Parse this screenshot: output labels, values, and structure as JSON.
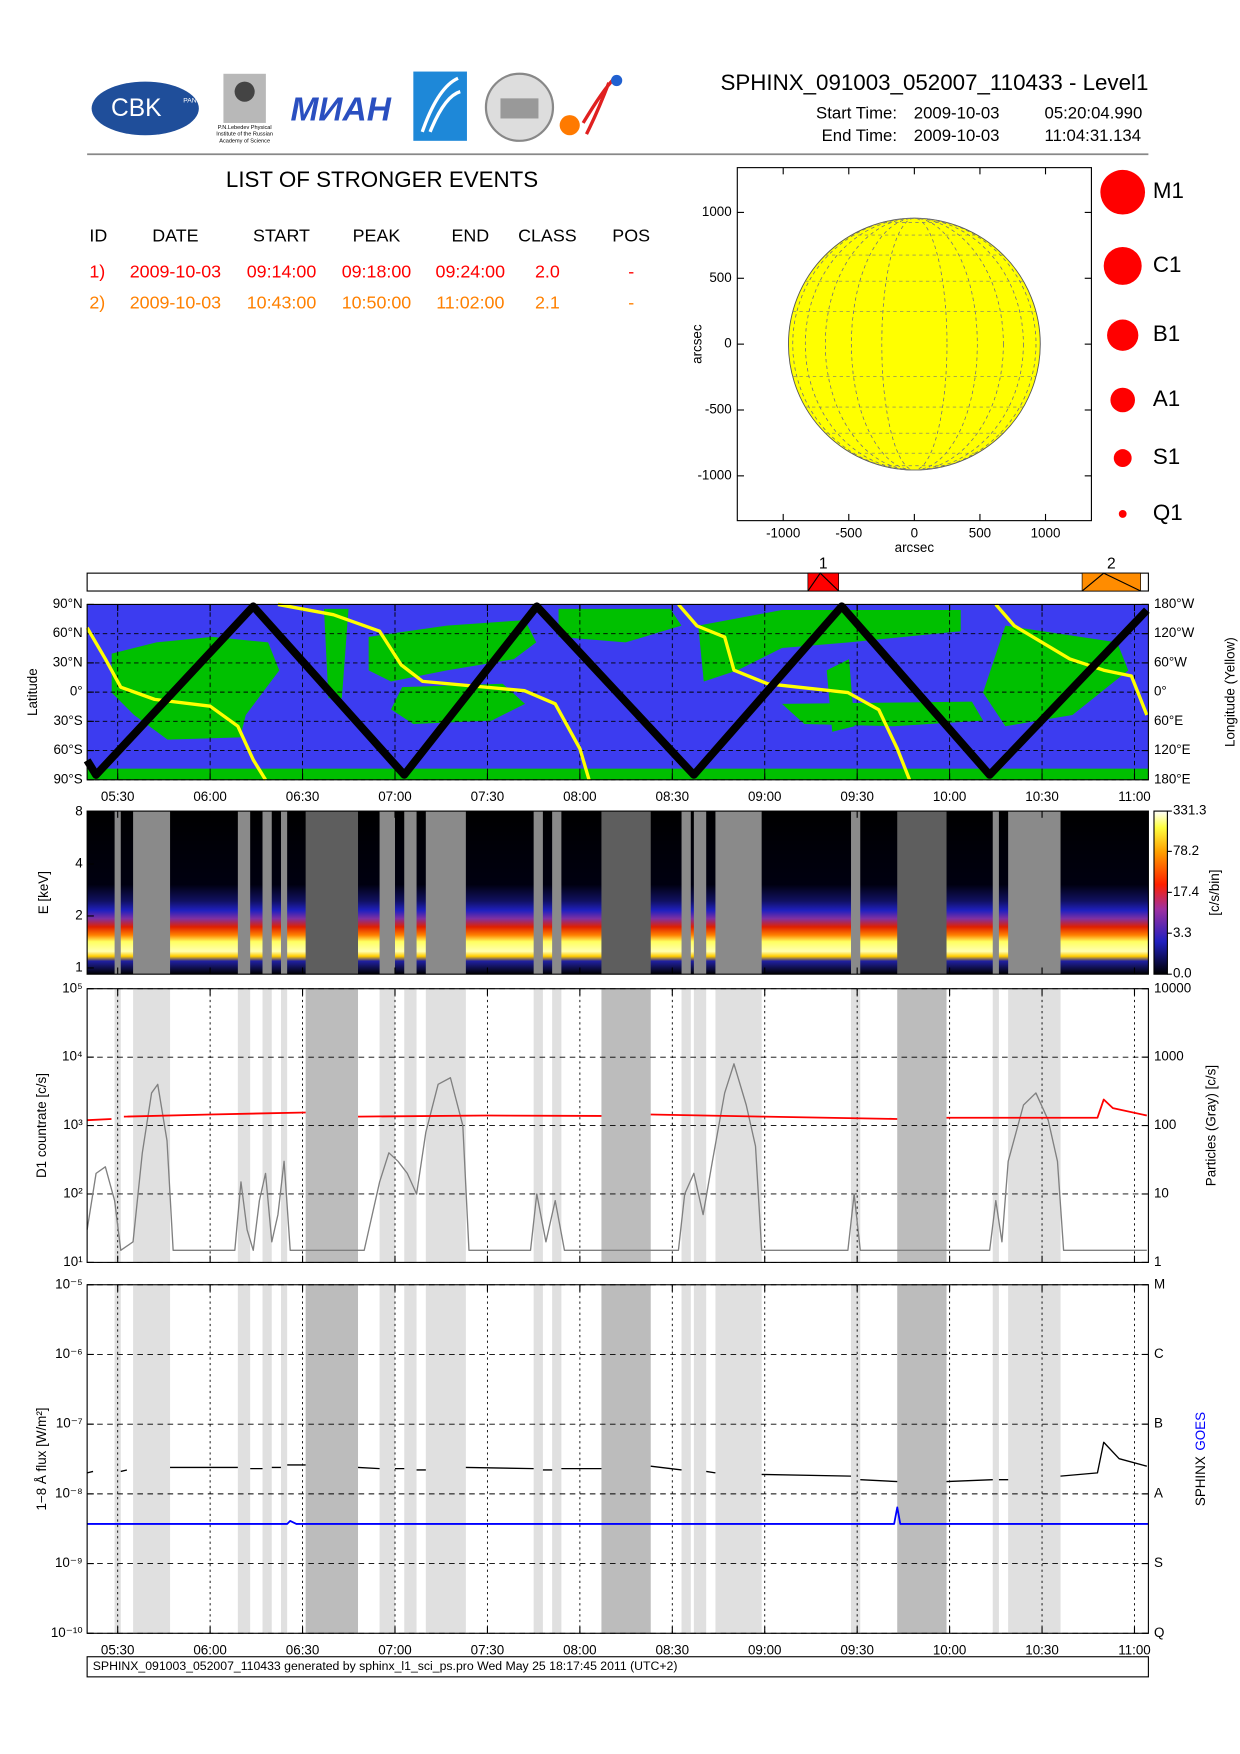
{
  "header": {
    "title": "SPHINX_091003_052007_110433 - Level1",
    "start_label": "Start Time:",
    "start_date": "2009-10-03",
    "start_time": "05:20:04.990",
    "end_label": "End Time:",
    "end_date": "2009-10-03",
    "end_time": "11:04:31.134"
  },
  "logos": {
    "cbk": "CBK",
    "pan": "PAN",
    "lebedev": [
      "P.N.Lebedev Physical",
      "Institute of the Russian",
      "Academy of Science"
    ],
    "mian": "МИАН"
  },
  "events": {
    "title": "LIST OF STRONGER EVENTS",
    "columns": [
      "ID",
      "DATE",
      "START",
      "PEAK",
      "END",
      "CLASS",
      "POS"
    ],
    "rows": [
      [
        "1)",
        "2009-10-03",
        "09:14:00",
        "09:18:00",
        "09:24:00",
        "2.0",
        "-"
      ],
      [
        "2)",
        "2009-10-03",
        "10:43:00",
        "10:50:00",
        "11:02:00",
        "2.1",
        "-"
      ]
    ],
    "row_colors": [
      "#ff0000",
      "#ff8000"
    ]
  },
  "timeline": {
    "xlim": [
      "05:20:05",
      "11:04:31"
    ],
    "xticks": [
      "05:30",
      "06:00",
      "06:30",
      "07:00",
      "07:30",
      "08:00",
      "08:30",
      "09:00",
      "09:30",
      "10:00",
      "10:30",
      "11:00"
    ],
    "gaps": [
      {
        "start": "05:29",
        "end": "05:31",
        "shade": "light"
      },
      {
        "start": "05:35",
        "end": "05:47",
        "shade": "light"
      },
      {
        "start": "06:09",
        "end": "06:13",
        "shade": "light"
      },
      {
        "start": "06:17",
        "end": "06:20",
        "shade": "light"
      },
      {
        "start": "06:23",
        "end": "06:25",
        "shade": "light"
      },
      {
        "start": "06:31",
        "end": "06:48",
        "shade": "dark"
      },
      {
        "start": "06:55",
        "end": "07:00",
        "shade": "light"
      },
      {
        "start": "07:03",
        "end": "07:07",
        "shade": "light"
      },
      {
        "start": "07:10",
        "end": "07:23",
        "shade": "light"
      },
      {
        "start": "07:45",
        "end": "07:48",
        "shade": "light"
      },
      {
        "start": "07:51",
        "end": "07:54",
        "shade": "light"
      },
      {
        "start": "08:07",
        "end": "08:23",
        "shade": "dark"
      },
      {
        "start": "08:33",
        "end": "08:36",
        "shade": "light"
      },
      {
        "start": "08:37",
        "end": "08:41",
        "shade": "light"
      },
      {
        "start": "08:44",
        "end": "08:59",
        "shade": "light"
      },
      {
        "start": "09:28",
        "end": "09:31",
        "shade": "light"
      },
      {
        "start": "09:43",
        "end": "09:59",
        "shade": "dark"
      },
      {
        "start": "10:14",
        "end": "10:16",
        "shade": "light"
      },
      {
        "start": "10:19",
        "end": "10:36",
        "shade": "light"
      }
    ]
  },
  "footer": "SPHINX_091003_052007_110433 generated by sphinx_l1_sci_ps.pro Wed May 25 18:17:45 2011 (UTC+2)",
  "chart_data": [
    {
      "type": "disk",
      "xlabel": "arcsec",
      "ylabel": "arcsec",
      "xlim": [
        -1350,
        1350
      ],
      "ylim": [
        -1340,
        1340
      ],
      "xticks": [
        -1000,
        -500,
        0,
        500,
        1000
      ],
      "yticks": [
        -1000,
        -500,
        0,
        500,
        1000
      ],
      "radius": 960,
      "color": "#ffff00",
      "classes": [
        "M1",
        "C1",
        "B1",
        "A1",
        "S1",
        "Q1"
      ],
      "class_color": "#ff0000"
    },
    {
      "type": "event-bar",
      "events": [
        {
          "label": "1",
          "start": "09:14",
          "peak": "09:18",
          "end": "09:24",
          "color": "#ff0000"
        },
        {
          "label": "2",
          "start": "10:43",
          "peak": "10:50",
          "end": "11:02",
          "color": "#ff8c00"
        }
      ]
    },
    {
      "type": "orbit",
      "ylabel": "Latitude",
      "y2label": "Longitude (Yellow)",
      "grid": true,
      "ylim": [
        -90,
        90
      ],
      "yticks": [
        {
          "value": 90,
          "label": "90°N"
        },
        {
          "value": 60,
          "label": "60°N"
        },
        {
          "value": 30,
          "label": "30°N"
        },
        {
          "value": 0,
          "label": "0°"
        },
        {
          "value": -30,
          "label": "30°S"
        },
        {
          "value": -60,
          "label": "60°S"
        },
        {
          "value": -90,
          "label": "90°S"
        }
      ],
      "y2lim": [
        180,
        -180
      ],
      "y2ticks": [
        {
          "value": -180,
          "label": "180°W"
        },
        {
          "value": -120,
          "label": "120°W"
        },
        {
          "value": -60,
          "label": "60°W"
        },
        {
          "value": 0,
          "label": "0°"
        },
        {
          "value": 60,
          "label": "60°E"
        },
        {
          "value": 120,
          "label": "120°E"
        },
        {
          "value": 180,
          "label": "180°E"
        }
      ],
      "series": [
        {
          "color": "#ffff00",
          "axis": "y2",
          "x": [
            "05:20:05",
            "05:26",
            "05:31",
            "05:42",
            "06:00",
            "06:09",
            "06:14",
            "06:18",
            "06:20",
            "06:22",
            "06:40",
            "06:55",
            "07:02",
            "07:09",
            "07:42",
            "07:52",
            "08:00",
            "08:03",
            "08:20",
            "08:32",
            "08:38",
            "08:47",
            "08:50",
            "09:01",
            "09:27",
            "09:37",
            "09:43",
            "09:47",
            "10:00",
            "10:15",
            "10:21",
            "10:39",
            "10:50",
            "10:59",
            "11:04"
          ],
          "values": [
            -132,
            -68,
            -10,
            15,
            29,
            70,
            139,
            180,
            null,
            -180,
            -159,
            -125,
            -56,
            -22,
            -3,
            24,
            116,
            180,
            null,
            -180,
            -136,
            -113,
            -45,
            -17,
            1,
            36,
            116,
            180,
            null,
            -180,
            -136,
            -68,
            -45,
            -33,
            47
          ]
        },
        {
          "color": "#000000",
          "x": [
            "05:20:05",
            "05:23",
            "06:14",
            "07:03",
            "07:46",
            "08:37",
            "09:25",
            "10:13",
            "11:04"
          ],
          "values": [
            -70,
            -85,
            88,
            -85,
            88,
            -85,
            88,
            -85,
            84
          ]
        }
      ]
    },
    {
      "type": "spectrogram",
      "ylabel": "E [keV]",
      "log": true,
      "ylim": [
        0.92,
        8.1
      ],
      "yticks": [
        1,
        2,
        4,
        8
      ],
      "colorbar": {
        "label": "[c/s/bin]",
        "scale": "log1p",
        "lim": [
          0,
          331.3
        ],
        "ticks": [
          {
            "value": 0,
            "label": "0.0"
          },
          3.3,
          17.4,
          78.2,
          331.3
        ]
      }
    },
    {
      "type": "line",
      "ylabel": "D1 countrate [c/s]",
      "y2label": "Particles (Gray) [c/s]",
      "log": true,
      "grid": true,
      "ylim": [
        10,
        100000
      ],
      "yticks": [
        {
          "value": 100000,
          "label": "10⁵"
        },
        {
          "value": 10000,
          "label": "10⁴"
        },
        {
          "value": 1000,
          "label": "10³"
        },
        {
          "value": 100,
          "label": "10²"
        },
        {
          "value": 10,
          "label": "10¹"
        }
      ],
      "y2lim": [
        1,
        10000
      ],
      "y2ticks": [
        10000,
        1000,
        100,
        10,
        1
      ],
      "series": [
        {
          "color": "#808080",
          "axis": "y2",
          "x": [
            "05:20:05",
            "05:23",
            "05:26",
            "05:29",
            "05:31",
            "05:35",
            "05:38",
            "05:41",
            "05:43",
            "05:46",
            "05:48",
            "06:08",
            "06:10",
            "06:12",
            "06:14",
            "06:16",
            "06:18",
            "06:20",
            "06:22",
            "06:24",
            "06:26",
            "06:50",
            "06:55",
            "06:58",
            "07:01",
            "07:04",
            "07:07",
            "07:10",
            "07:14",
            "07:18",
            "07:22",
            "07:24",
            "07:44",
            "07:46",
            "07:49",
            "07:52",
            "07:55",
            "08:32",
            "08:34",
            "08:37",
            "08:40",
            "08:43",
            "08:47",
            "08:50",
            "08:54",
            "08:57",
            "08:59",
            "09:27",
            "09:29",
            "09:31",
            "10:13",
            "10:15",
            "10:17",
            "10:19",
            "10:24",
            "10:28",
            "10:32",
            "10:35",
            "10:37",
            "11:04"
          ],
          "values": [
            3,
            20,
            25,
            8,
            1.5,
            2,
            40,
            300,
            400,
            60,
            1.5,
            1.5,
            15,
            3,
            1.5,
            8,
            20,
            2,
            5,
            30,
            1.5,
            1.5,
            15,
            40,
            30,
            20,
            10,
            80,
            400,
            500,
            100,
            1.5,
            1.5,
            10,
            2,
            8,
            1.5,
            1.5,
            10,
            20,
            5,
            30,
            300,
            800,
            200,
            50,
            1.5,
            1.5,
            10,
            1.5,
            1.5,
            8,
            2,
            30,
            200,
            300,
            120,
            30,
            1.5,
            1.5
          ]
        },
        {
          "color": "#ff0000",
          "x": [
            "05:20:05",
            "05:28",
            "05:30",
            "05:32",
            "06:00",
            "06:31",
            "06:40",
            "06:48",
            "07:30",
            "08:07",
            "08:15",
            "08:23",
            "09:00",
            "09:43",
            "09:50",
            "09:59",
            "10:48",
            "10:50",
            "10:53",
            "11:04"
          ],
          "values": [
            1200,
            1250,
            null,
            1350,
            1450,
            1550,
            null,
            1350,
            1400,
            1380,
            null,
            1450,
            1350,
            1250,
            null,
            1300,
            1300,
            2400,
            1800,
            1400
          ]
        }
      ]
    },
    {
      "type": "line",
      "ylabel": "1−8 Å flux [W/m²]",
      "log": true,
      "grid": true,
      "ylim": [
        1e-10,
        1e-05
      ],
      "yticks": [
        {
          "value": 1e-05,
          "label": "10⁻⁵"
        },
        {
          "value": 1e-06,
          "label": "10⁻⁶"
        },
        {
          "value": 1e-07,
          "label": "10⁻⁷"
        },
        {
          "value": 1e-08,
          "label": "10⁻⁸"
        },
        {
          "value": 1e-09,
          "label": "10⁻⁹"
        },
        {
          "value": 1e-10,
          "label": "10⁻¹⁰"
        }
      ],
      "y2lim": [
        1e-10,
        1e-05
      ],
      "y2ticks": [
        {
          "value": 1e-05,
          "label": "M"
        },
        {
          "value": 1e-06,
          "label": "C"
        },
        {
          "value": 1e-07,
          "label": "B"
        },
        {
          "value": 1e-08,
          "label": "A"
        },
        {
          "value": 1e-09,
          "label": "S"
        },
        {
          "value": 1e-10,
          "label": "Q"
        }
      ],
      "series": [
        {
          "name": "SPHINX",
          "color": "#000000",
          "x": [
            "05:20:05",
            "05:22",
            "05:26",
            "05:31",
            "05:33",
            "05:40",
            "05:47",
            "06:09",
            "06:11",
            "06:13",
            "06:17",
            "06:18",
            "06:20",
            "06:23",
            "06:24",
            "06:25",
            "06:31",
            "06:40",
            "06:48",
            "06:55",
            "06:57",
            "07:00",
            "07:03",
            "07:05",
            "07:07",
            "07:10",
            "07:15",
            "07:23",
            "07:45",
            "07:46",
            "07:48",
            "07:51",
            "07:52",
            "07:54",
            "08:07",
            "08:15",
            "08:23",
            "08:33",
            "08:34",
            "08:41",
            "08:44",
            "08:50",
            "08:59",
            "09:28",
            "09:29",
            "09:31",
            "09:43",
            "09:50",
            "09:59",
            "10:14",
            "10:15",
            "10:16",
            "10:19",
            "10:25",
            "10:36",
            "10:48",
            "10:50",
            "10:55",
            "11:04"
          ],
          "values": [
            2e-08,
            2.1e-08,
            null,
            2.1e-08,
            2.2e-08,
            null,
            2.4e-08,
            2.4e-08,
            null,
            2.3e-08,
            2.3e-08,
            null,
            2.4e-08,
            2.4e-08,
            null,
            2.6e-08,
            2.6e-08,
            null,
            2.4e-08,
            2.3e-08,
            null,
            2.3e-08,
            2.3e-08,
            null,
            2.2e-08,
            2.2e-08,
            null,
            2.4e-08,
            2.3e-08,
            null,
            2.2e-08,
            2.2e-08,
            null,
            2.3e-08,
            2.3e-08,
            null,
            2.5e-08,
            2.2e-08,
            null,
            2.1e-08,
            2e-08,
            null,
            1.9e-08,
            1.8e-08,
            null,
            1.6e-08,
            1.5e-08,
            null,
            1.5e-08,
            1.6e-08,
            null,
            1.6e-08,
            1.6e-08,
            null,
            1.8e-08,
            2e-08,
            5.5e-08,
            3.2e-08,
            2.5e-08
          ]
        },
        {
          "name": "GOES",
          "color": "#0000ff",
          "x": [
            "05:20:05",
            "06:25",
            "06:26",
            "06:28",
            "09:42",
            "09:43",
            "09:44",
            "11:04:31"
          ],
          "values": [
            3.7e-09,
            3.7e-09,
            4.1e-09,
            3.7e-09,
            3.7e-09,
            6.4e-09,
            3.7e-09,
            3.7e-09
          ]
        }
      ]
    }
  ]
}
